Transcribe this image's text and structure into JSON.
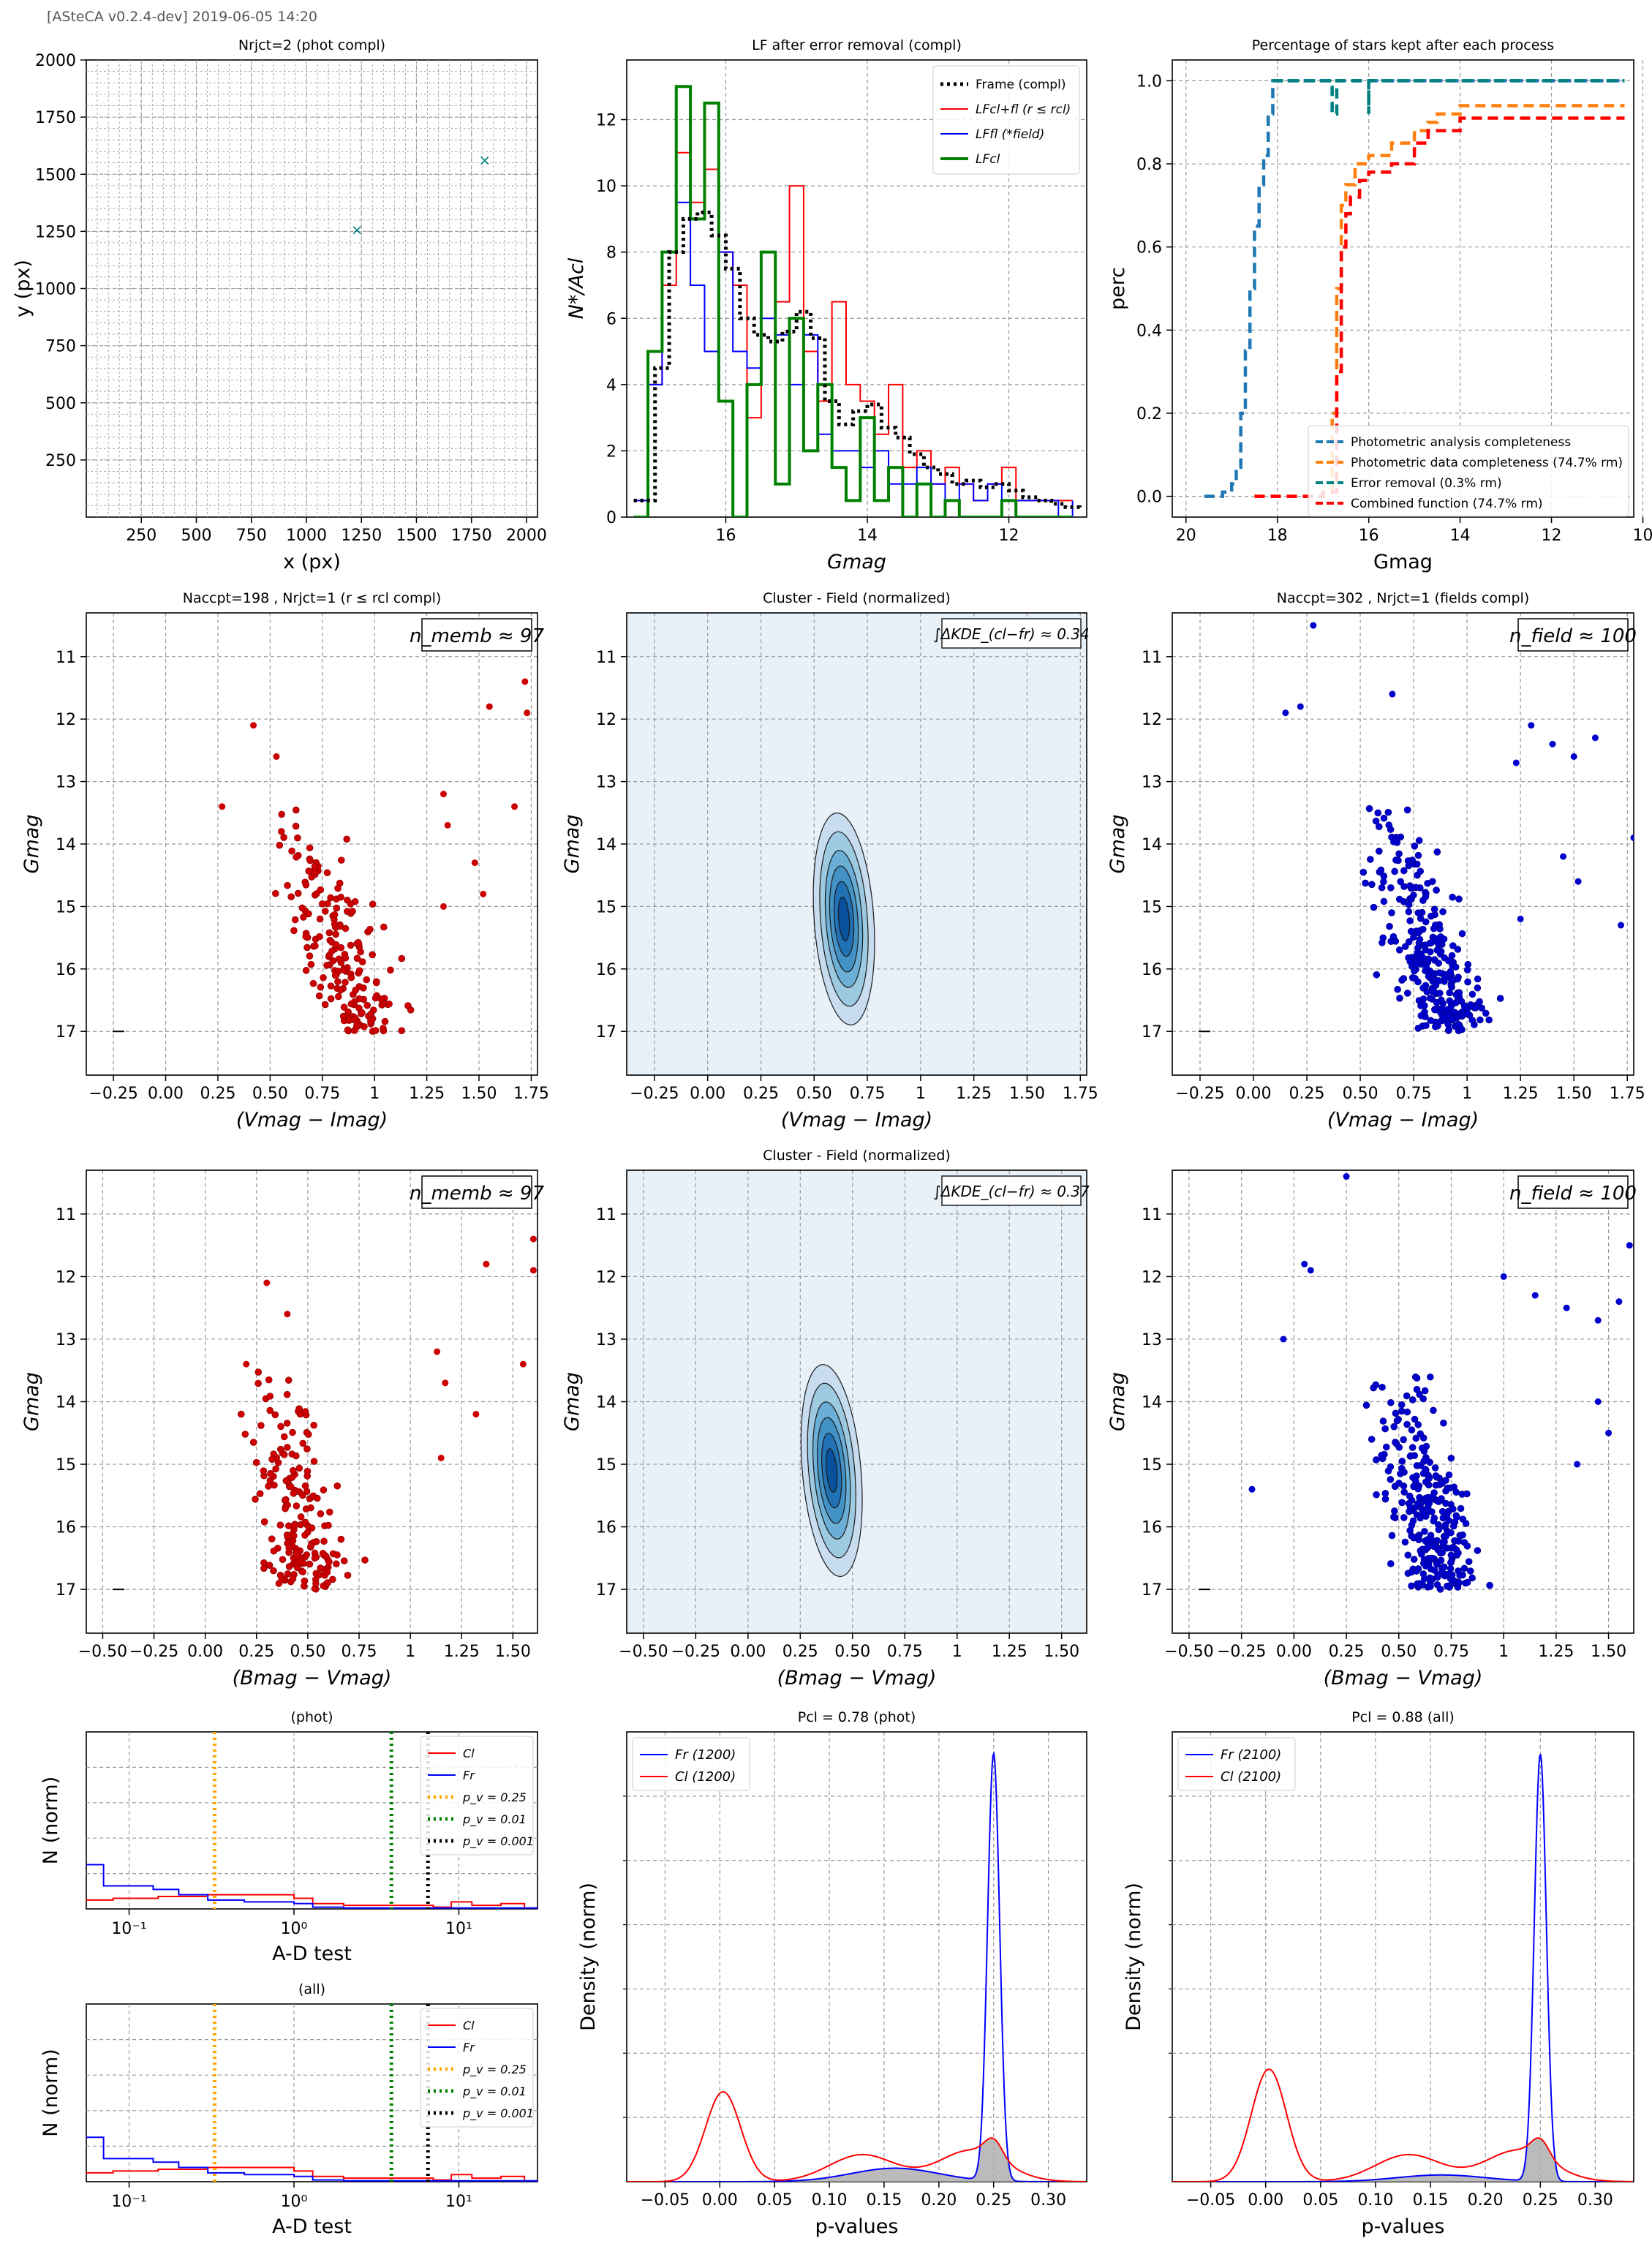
{
  "header": {
    "text": "[ASteCA v0.2.4-dev] 2019-06-05 14:20"
  },
  "colors": {
    "cluster_red": "#cc0000",
    "field_blue": "#0000cc",
    "frame_black": "#000000",
    "kde_fill": "#e8f0f8",
    "kde_line": "#1f4e8c",
    "lf_green": "#008000",
    "teal": "#008080",
    "orange": "#ff7f0e",
    "steel": "#1f77b4",
    "gold": "#ffa500"
  },
  "chart_data": [
    {
      "id": "xy",
      "type": "scatter",
      "title": "N_rjct=2 (phot compl)",
      "xlabel": "x (px)",
      "ylabel": "y (px)",
      "xlim": [
        0,
        2050
      ],
      "ylim": [
        0,
        2000
      ],
      "xticks": [
        250,
        500,
        750,
        1000,
        1250,
        1500,
        1750,
        2000
      ],
      "yticks": [
        250,
        500,
        750,
        1000,
        1250,
        1500,
        1750,
        2000
      ],
      "grid": true,
      "points": [
        {
          "x": 1230,
          "y": 1255
        },
        {
          "x": 1810,
          "y": 1560
        }
      ]
    },
    {
      "id": "lf",
      "type": "line",
      "title": "LF after error removal (compl)",
      "xlabel": "Gmag",
      "ylabel": "N*/A_cl",
      "xlim": [
        17.4,
        10.9
      ],
      "ylim": [
        0,
        13.8
      ],
      "xticks": [
        16,
        14,
        12
      ],
      "yticks": [
        0,
        2,
        4,
        6,
        8,
        10,
        12
      ],
      "grid": true,
      "legend": [
        "Frame (compl)",
        "LF_cl+fl (r ≤ r_cl)",
        "LF_fl (*_field)",
        "LF_cl"
      ],
      "series": [
        {
          "name": "Frame (compl)",
          "x": [
            17.3,
            17.0,
            16.8,
            16.6,
            16.4,
            16.2,
            16.0,
            15.8,
            15.6,
            15.4,
            15.2,
            15.0,
            14.8,
            14.6,
            14.4,
            14.2,
            14.0,
            13.8,
            13.6,
            13.4,
            13.2,
            13.0,
            12.8,
            12.6,
            12.4,
            12.2,
            12.0,
            11.8,
            11.6,
            11.4,
            11.2,
            11.0
          ],
          "y": [
            0.5,
            4.5,
            8.0,
            9.0,
            9.2,
            8.5,
            7.5,
            6.0,
            5.5,
            5.3,
            5.6,
            6.2,
            5.4,
            3.5,
            2.8,
            3.2,
            3.4,
            2.7,
            2.4,
            1.9,
            1.5,
            1.3,
            1.0,
            1.1,
            0.9,
            1.0,
            0.8,
            0.6,
            0.5,
            0.4,
            0.3,
            0.2
          ]
        },
        {
          "name": "LF_cl+fl (r ≤ r_cl)",
          "x": [
            17.3,
            17.1,
            16.9,
            16.7,
            16.5,
            16.3,
            16.1,
            15.9,
            15.7,
            15.5,
            15.3,
            15.1,
            14.9,
            14.7,
            14.5,
            14.3,
            14.1,
            13.9,
            13.7,
            13.5,
            13.3,
            13.1,
            12.9,
            12.7,
            12.5,
            12.3,
            12.1,
            11.9,
            11.7,
            11.5,
            11.3,
            11.1
          ],
          "y": [
            0.5,
            4.0,
            7.0,
            11.0,
            9.5,
            10.5,
            8.0,
            7.0,
            3.0,
            8.0,
            6.5,
            10.0,
            5.0,
            3.5,
            6.5,
            4.0,
            3.5,
            2.5,
            4.0,
            1.5,
            2.0,
            1.0,
            1.5,
            1.0,
            0.5,
            1.0,
            1.5,
            0.5,
            0.5,
            0.5,
            0.5,
            0.5
          ]
        },
        {
          "name": "LF_fl (*_field)",
          "x": [
            17.3,
            17.1,
            16.9,
            16.7,
            16.5,
            16.3,
            16.1,
            15.9,
            15.7,
            15.5,
            15.3,
            15.1,
            14.9,
            14.7,
            14.5,
            14.3,
            14.1,
            13.9,
            13.7,
            13.5,
            13.3,
            13.1,
            12.9,
            12.7,
            12.5,
            12.3,
            12.1,
            11.9,
            11.7,
            11.5,
            11.3,
            11.1
          ],
          "y": [
            0.5,
            4.0,
            8.0,
            9.5,
            7.0,
            5.0,
            8.0,
            5.0,
            4.5,
            6.0,
            5.5,
            4.0,
            5.5,
            2.5,
            2.0,
            2.0,
            1.5,
            2.0,
            1.0,
            1.0,
            1.5,
            1.0,
            0.5,
            1.0,
            0.5,
            1.0,
            0.5,
            0.5,
            0.5,
            0.5,
            0.0,
            0.5
          ]
        },
        {
          "name": "LF_cl",
          "x": [
            17.3,
            17.1,
            16.9,
            16.7,
            16.5,
            16.3,
            16.1,
            15.9,
            15.7,
            15.5,
            15.3,
            15.1,
            14.9,
            14.7,
            14.5,
            14.3,
            14.1,
            13.9,
            13.7,
            13.5,
            13.3,
            13.1,
            12.9,
            12.7,
            12.5,
            12.3,
            12.1,
            11.9,
            11.7,
            11.5,
            11.3,
            11.1
          ],
          "y": [
            0.0,
            5.0,
            8.0,
            13.0,
            9.0,
            12.5,
            3.5,
            0.0,
            4.0,
            8.0,
            1.0,
            6.0,
            2.0,
            4.0,
            1.5,
            0.5,
            3.0,
            0.5,
            1.5,
            0.0,
            1.0,
            0.0,
            0.5,
            0.0,
            0.0,
            0.0,
            0.5,
            0.0,
            0.0,
            0.0,
            0.0,
            0.0
          ]
        }
      ]
    },
    {
      "id": "perc",
      "type": "line",
      "title": "Percentage of stars kept after each process",
      "xlabel": "Gmag",
      "ylabel": "perc",
      "xlim": [
        20.3,
        10.2
      ],
      "ylim": [
        -0.05,
        1.05
      ],
      "xticks": [
        20,
        18,
        16,
        14,
        12,
        10
      ],
      "yticks": [
        0.0,
        0.2,
        0.4,
        0.6,
        0.8,
        1.0
      ],
      "grid": true,
      "legend": [
        "Photometric analysis completeness",
        "Photometric data completeness (74.7% rm)",
        "Error removal (0.3% rm)",
        "Combined function (74.7% rm)"
      ],
      "series": [
        {
          "name": "Photometric analysis completeness",
          "x": [
            19.6,
            19.2,
            19.0,
            18.9,
            18.8,
            18.7,
            18.6,
            18.5,
            18.4,
            18.3,
            18.2,
            18.1,
            18.0,
            17.5,
            16.0,
            14.0,
            10.4
          ],
          "y": [
            0.0,
            0.01,
            0.03,
            0.07,
            0.2,
            0.35,
            0.5,
            0.65,
            0.75,
            0.82,
            0.92,
            1.0,
            1.0,
            1.0,
            1.0,
            1.0,
            1.0
          ]
        },
        {
          "name": "Photometric data completeness (74.7% rm)",
          "x": [
            18.5,
            17.0,
            16.8,
            16.7,
            16.6,
            16.5,
            16.3,
            16.0,
            15.5,
            15.0,
            14.7,
            14.5,
            14.0,
            12.0,
            10.4
          ],
          "y": [
            0.0,
            0.01,
            0.2,
            0.5,
            0.7,
            0.75,
            0.8,
            0.82,
            0.85,
            0.88,
            0.9,
            0.92,
            0.94,
            0.94,
            0.94
          ]
        },
        {
          "name": "Error removal (0.3% rm)",
          "x": [
            18.1,
            17.0,
            16.8,
            16.8,
            16.7,
            16.1,
            16.0,
            16.0,
            15.9,
            14.0,
            10.4
          ],
          "y": [
            1.0,
            1.0,
            1.0,
            0.92,
            1.0,
            1.0,
            0.92,
            1.0,
            1.0,
            1.0,
            1.0
          ]
        },
        {
          "name": "Combined function (74.7% rm)",
          "x": [
            18.5,
            17.0,
            16.7,
            16.6,
            16.5,
            16.4,
            16.2,
            16.0,
            15.5,
            15.0,
            14.7,
            14.0,
            12.0,
            10.4
          ],
          "y": [
            0.0,
            0.01,
            0.3,
            0.6,
            0.68,
            0.72,
            0.76,
            0.78,
            0.8,
            0.85,
            0.88,
            0.91,
            0.91,
            0.91
          ]
        }
      ]
    },
    {
      "id": "cmd1_cl",
      "type": "scatter",
      "title": "N_accpt=198 , N_rjct=1 (r ≤ r_cl compl)",
      "xlabel": "(Vmag − Imag)",
      "ylabel": "Gmag",
      "xlim": [
        -0.38,
        1.78
      ],
      "ylim": [
        17.7,
        10.3
      ],
      "xticks": [
        -0.25,
        0.0,
        0.25,
        0.5,
        0.75,
        1.0,
        1.25,
        1.5,
        1.75
      ],
      "yticks": [
        11,
        12,
        13,
        14,
        15,
        16,
        17
      ],
      "annotation": "n_memb ≈ 97",
      "grid": true
    },
    {
      "id": "kde1",
      "type": "heatmap",
      "title": "Cluster - Field (normalized)",
      "xlabel": "(Vmag − Imag)",
      "ylabel": "Gmag",
      "xlim": [
        -0.38,
        1.78
      ],
      "ylim": [
        17.7,
        10.3
      ],
      "xticks": [
        -0.25,
        0.0,
        0.25,
        0.5,
        0.75,
        1.0,
        1.25,
        1.5,
        1.75
      ],
      "yticks": [
        11,
        12,
        13,
        14,
        15,
        16,
        17
      ],
      "annotation": "∫ΔKDE_(cl−fr) ≈ 0.34",
      "grid": true
    },
    {
      "id": "cmd1_fl",
      "type": "scatter",
      "title": "N_accpt=302 , N_rjct=1 (fields compl)",
      "xlabel": "(Vmag − Imag)",
      "ylabel": "Gmag",
      "xlim": [
        -0.38,
        1.78
      ],
      "ylim": [
        17.7,
        10.3
      ],
      "xticks": [
        -0.25,
        0.0,
        0.25,
        0.5,
        0.75,
        1.0,
        1.25,
        1.5,
        1.75
      ],
      "yticks": [
        11,
        12,
        13,
        14,
        15,
        16,
        17
      ],
      "annotation": "n_field ≈ 100",
      "grid": true
    },
    {
      "id": "cmd2_cl",
      "type": "scatter",
      "title": "",
      "xlabel": "(Bmag − Vmag)",
      "ylabel": "Gmag",
      "xlim": [
        -0.58,
        1.62
      ],
      "ylim": [
        17.7,
        10.3
      ],
      "xticks": [
        -0.5,
        -0.25,
        0.0,
        0.25,
        0.5,
        0.75,
        1.0,
        1.25,
        1.5
      ],
      "yticks": [
        11,
        12,
        13,
        14,
        15,
        16,
        17
      ],
      "annotation": "n_memb ≈ 97",
      "grid": true
    },
    {
      "id": "kde2",
      "type": "heatmap",
      "title": "Cluster - Field (normalized)",
      "xlabel": "(Bmag − Vmag)",
      "ylabel": "Gmag",
      "xlim": [
        -0.58,
        1.62
      ],
      "ylim": [
        17.7,
        10.3
      ],
      "xticks": [
        -0.5,
        -0.25,
        0.0,
        0.25,
        0.5,
        0.75,
        1.0,
        1.25,
        1.5
      ],
      "yticks": [
        11,
        12,
        13,
        14,
        15,
        16,
        17
      ],
      "annotation": "∫ΔKDE_(cl−fr) ≈ 0.37",
      "grid": true
    },
    {
      "id": "cmd2_fl",
      "type": "scatter",
      "title": "",
      "xlabel": "(Bmag − Vmag)",
      "ylabel": "Gmag",
      "xlim": [
        -0.58,
        1.62
      ],
      "ylim": [
        17.7,
        10.3
      ],
      "xticks": [
        -0.5,
        -0.25,
        0.0,
        0.25,
        0.5,
        0.75,
        1.0,
        1.25,
        1.5
      ],
      "yticks": [
        11,
        12,
        13,
        14,
        15,
        16,
        17
      ],
      "annotation": "n_field ≈ 100",
      "grid": true
    },
    {
      "id": "ad_phot",
      "type": "line",
      "title": "(phot)",
      "xlabel": "A-D test",
      "ylabel": "N (norm)",
      "xscale": "log",
      "xlim": [
        0.055,
        30
      ],
      "ylim": [
        0,
        1
      ],
      "xticks_label": [
        "10⁻¹",
        "10⁰",
        "10¹"
      ],
      "legend": [
        "Cl",
        "Fr",
        "p_v = 0.25",
        "p_v = 0.01",
        "p_v = 0.001"
      ],
      "vlines": [
        0.33,
        3.9,
        6.5
      ],
      "grid": true
    },
    {
      "id": "ad_all",
      "type": "line",
      "title": "(all)",
      "xlabel": "A-D test",
      "ylabel": "N (norm)",
      "xscale": "log",
      "xlim": [
        0.055,
        30
      ],
      "ylim": [
        0,
        1
      ],
      "xticks_label": [
        "10⁻¹",
        "10⁰",
        "10¹"
      ],
      "legend": [
        "Cl",
        "Fr",
        "p_v = 0.25",
        "p_v = 0.01",
        "p_v = 0.001"
      ],
      "vlines": [
        0.33,
        3.9,
        6.5
      ],
      "grid": true
    },
    {
      "id": "pv_phot",
      "type": "line",
      "title": "P_cl = 0.78 (phot)",
      "xlabel": "p-values",
      "ylabel": "Density (norm)",
      "xlim": [
        -0.085,
        0.335
      ],
      "xticks": [
        -0.05,
        0.0,
        0.05,
        0.1,
        0.15,
        0.2,
        0.25,
        0.3
      ],
      "legend": [
        "Fr (1200)",
        "Cl (1200)"
      ],
      "grid": true
    },
    {
      "id": "pv_all",
      "type": "line",
      "title": "P_cl = 0.88 (all)",
      "xlabel": "p-values",
      "ylabel": "Density (norm)",
      "xlim": [
        -0.085,
        0.335
      ],
      "xticks": [
        -0.05,
        0.0,
        0.05,
        0.1,
        0.15,
        0.2,
        0.25,
        0.3
      ],
      "legend": [
        "Fr (2100)",
        "Cl (2100)"
      ],
      "grid": true
    }
  ]
}
